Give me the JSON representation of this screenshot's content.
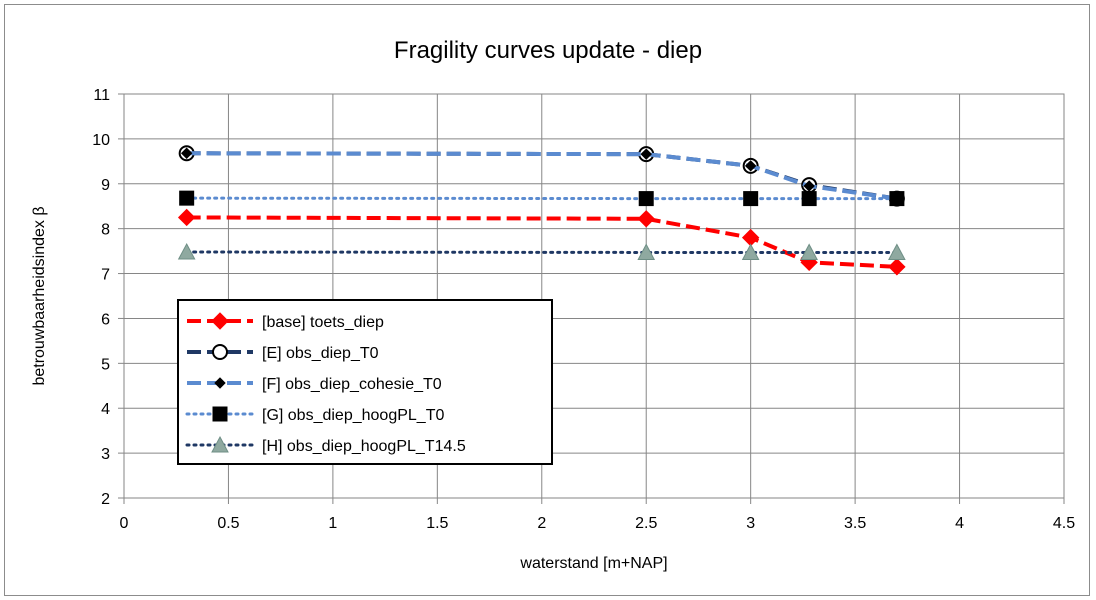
{
  "chart_data": {
    "type": "line",
    "title": "Fragility curves update - diep",
    "xlabel": "waterstand [m+NAP]",
    "ylabel": "betrouwbaarheidsindex β",
    "xlim": [
      0,
      4.5
    ],
    "ylim": [
      2,
      11
    ],
    "x_ticks": [
      "0",
      "0.5",
      "1",
      "1.5",
      "2",
      "2.5",
      "3",
      "3.5",
      "4",
      "4.5"
    ],
    "y_ticks": [
      "2",
      "3",
      "4",
      "5",
      "6",
      "7",
      "8",
      "9",
      "10",
      "11"
    ],
    "grid": true,
    "legend_position": "left",
    "series": [
      {
        "name": "[base] toets_diep",
        "color": "#ff0000",
        "line_style": "dashed",
        "marker": "diamond",
        "x": [
          0.3,
          2.5,
          3.0,
          3.28,
          3.7
        ],
        "y": [
          8.25,
          8.22,
          7.8,
          7.25,
          7.15
        ]
      },
      {
        "name": "[E] obs_diep_T0",
        "color": "#1f3864",
        "line_style": "dashed",
        "marker": "circle-open",
        "x": [
          0.3,
          2.5,
          3.0,
          3.28,
          3.7
        ],
        "y": [
          9.68,
          9.66,
          9.4,
          8.97,
          8.67
        ]
      },
      {
        "name": "[F] obs_diep_cohesie_T0",
        "color": "#5b8bd0",
        "line_style": "dashed",
        "marker": "diamond-small",
        "x": [
          0.3,
          2.5,
          3.0,
          3.28,
          3.7
        ],
        "y": [
          9.68,
          9.66,
          9.4,
          8.95,
          8.67
        ]
      },
      {
        "name": "[G] obs_diep_hoogPL_T0",
        "color": "#5b8bd0",
        "line_style": "dotted",
        "marker": "square",
        "x": [
          0.3,
          2.5,
          3.0,
          3.28,
          3.7
        ],
        "y": [
          8.68,
          8.67,
          8.67,
          8.67,
          8.67
        ]
      },
      {
        "name": "[H] obs_diep_hoogPL_T14.5",
        "color": "#1f3864",
        "line_style": "dotted",
        "marker": "triangle",
        "marker_color": "#8fa9a0",
        "x": [
          0.3,
          2.5,
          3.0,
          3.28,
          3.7
        ],
        "y": [
          7.48,
          7.47,
          7.47,
          7.47,
          7.47
        ]
      }
    ]
  }
}
